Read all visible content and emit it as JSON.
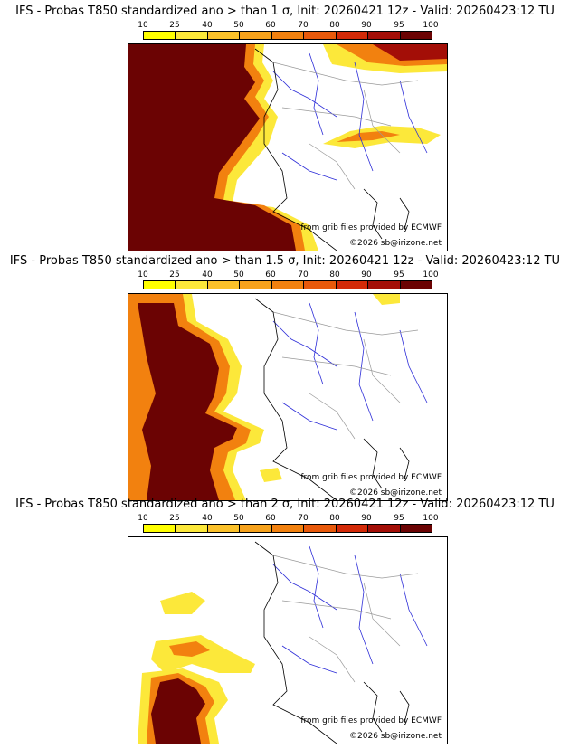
{
  "panels": [
    {
      "title": "IFS - Probas T850  standardized ano > than 1 σ, Init: 20260421 12z - Valid: 20260423:12 TU",
      "colorbar_ticks": [
        "10",
        "25",
        "40",
        "50",
        "60",
        "70",
        "80",
        "90",
        "95",
        "100"
      ],
      "credit_source": "from grib files provided by ECMWF",
      "credit_copyright": "©2026 sb@irizone.net"
    },
    {
      "title": "IFS - Probas T850  standardized ano > than 1.5 σ, Init: 20260421 12z - Valid: 20260423:12 TU",
      "colorbar_ticks": [
        "10",
        "25",
        "40",
        "50",
        "60",
        "70",
        "80",
        "90",
        "95",
        "100"
      ],
      "credit_source": "from grib files provided by ECMWF",
      "credit_copyright": "©2026 sb@irizone.net"
    },
    {
      "title": "IFS - Probas T850  standardized ano > than 2 σ, Init: 20260421 12z - Valid: 20260423:12 TU",
      "colorbar_ticks": [
        "10",
        "25",
        "40",
        "50",
        "60",
        "70",
        "80",
        "90",
        "95",
        "100"
      ],
      "credit_source": "from grib files provided by ECMWF",
      "credit_copyright": "©2026 sb@irizone.net"
    }
  ],
  "colors": {
    "scale": [
      "#ffff00",
      "#fce83a",
      "#fbc12a",
      "#f6a21c",
      "#f2810f",
      "#e8590b",
      "#d32a08",
      "#a30e07",
      "#6b0303"
    ],
    "coast": "#000000",
    "rivers": "#2d2dd8",
    "borders": "#9a9a9a"
  }
}
